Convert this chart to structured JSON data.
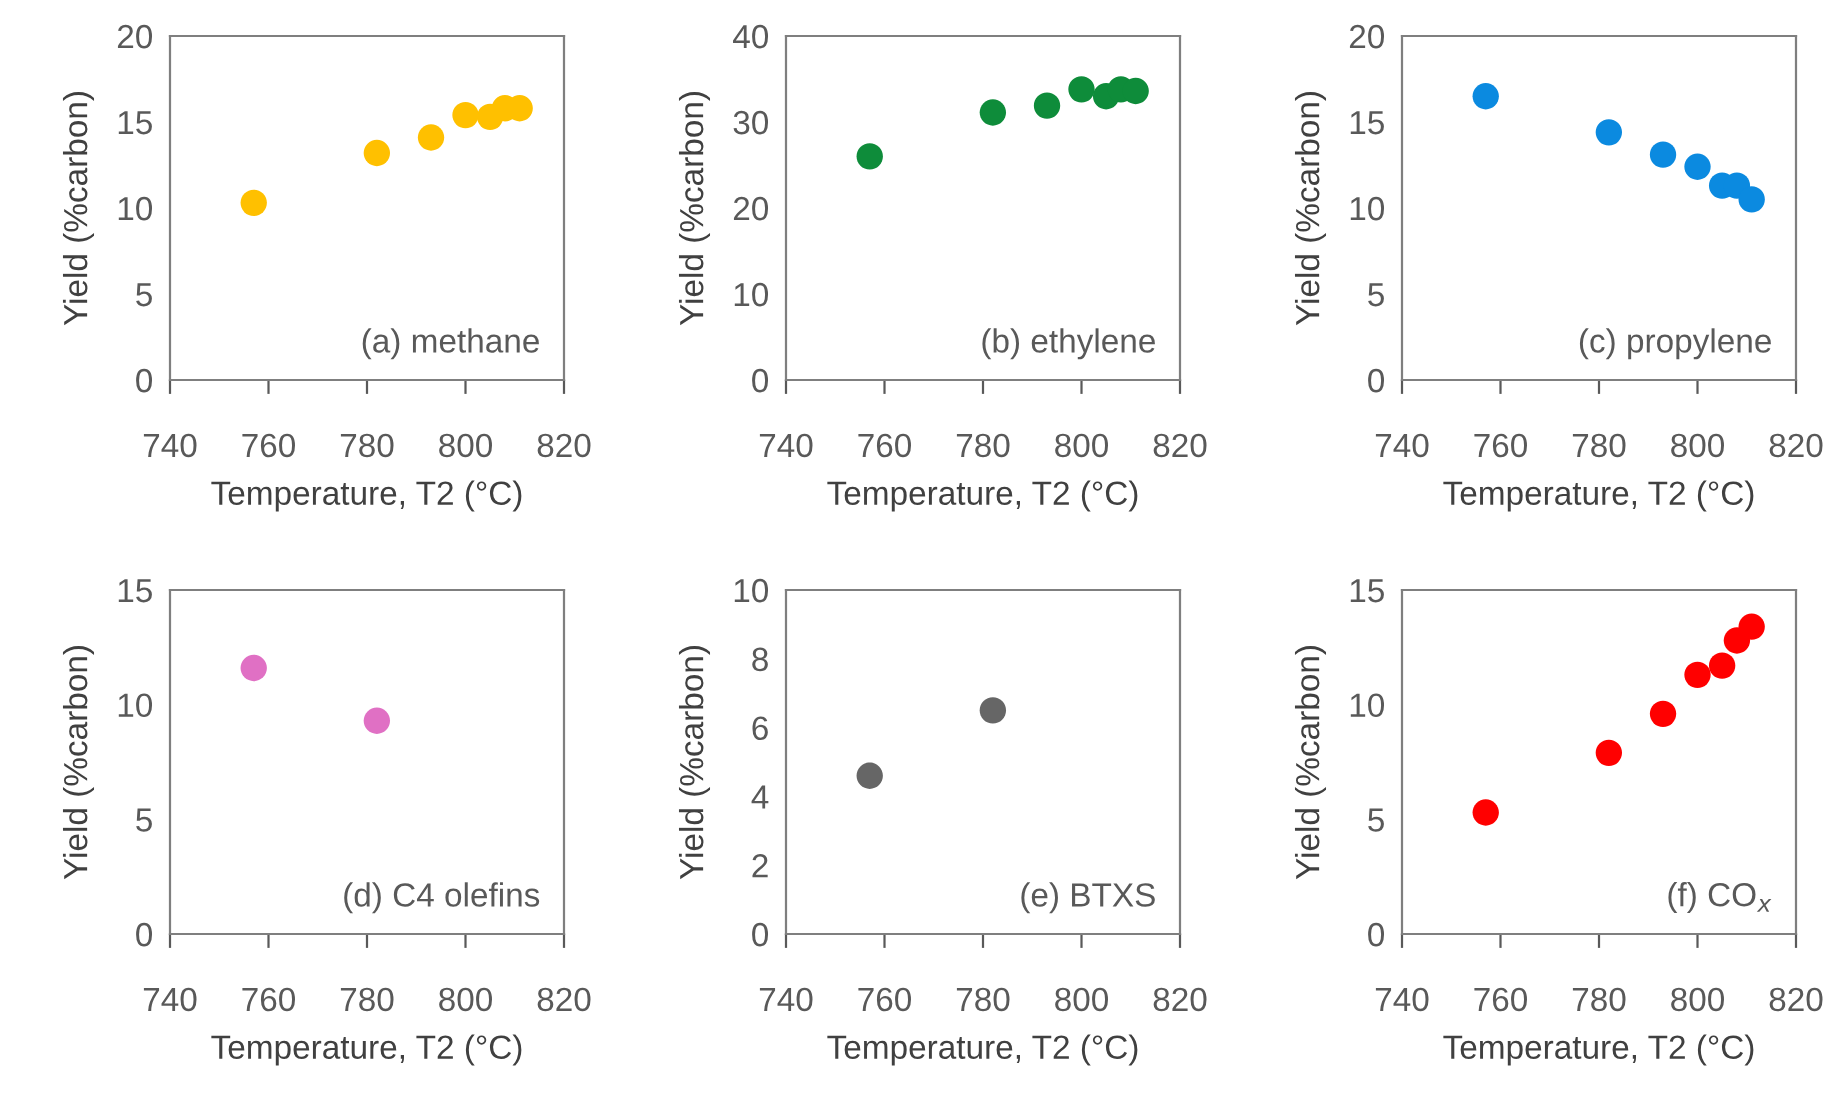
{
  "chart_data": [
    {
      "type": "scatter",
      "x": [
        757,
        782,
        793,
        800,
        805,
        808,
        811
      ],
      "series": [
        {
          "color": "#ffc000",
          "values": [
            10.3,
            13.2,
            14.1,
            15.4,
            15.3,
            15.8,
            15.8
          ]
        }
      ],
      "xlim": [
        740,
        820
      ],
      "xticks": [
        740,
        760,
        780,
        800,
        820
      ],
      "ylim": [
        0,
        20
      ],
      "yticks": [
        0,
        5,
        10,
        15,
        20
      ],
      "xlabel": "Temperature, T2 (°C)",
      "ylabel": "Yield (%carbon)",
      "annotations": [
        "(a) methane"
      ],
      "marker": "circle",
      "grid": false
    },
    {
      "type": "scatter",
      "x": [
        757,
        782,
        793,
        800,
        805,
        808,
        811
      ],
      "series": [
        {
          "color": "#0e8c3a",
          "values": [
            26.0,
            31.1,
            31.9,
            33.8,
            33.0,
            33.8,
            33.6
          ]
        }
      ],
      "xlim": [
        740,
        820
      ],
      "xticks": [
        740,
        760,
        780,
        800,
        820
      ],
      "ylim": [
        0,
        40
      ],
      "yticks": [
        0,
        10,
        20,
        30,
        40
      ],
      "xlabel": "Temperature, T2 (°C)",
      "ylabel": "Yield (%carbon)",
      "annotations": [
        "(b) ethylene"
      ],
      "marker": "circle",
      "grid": false
    },
    {
      "type": "scatter",
      "x": [
        757,
        782,
        793,
        800,
        805,
        808,
        811
      ],
      "series": [
        {
          "color": "#0b8ae0",
          "values": [
            16.5,
            14.4,
            13.1,
            12.4,
            11.3,
            11.3,
            10.5
          ]
        }
      ],
      "xlim": [
        740,
        820
      ],
      "xticks": [
        740,
        760,
        780,
        800,
        820
      ],
      "ylim": [
        0,
        20
      ],
      "yticks": [
        0,
        5,
        10,
        15,
        20
      ],
      "xlabel": "Temperature, T2 (°C)",
      "ylabel": "Yield (%carbon)",
      "annotations": [
        "(c) propylene"
      ],
      "marker": "circle",
      "grid": false
    },
    {
      "type": "scatter",
      "x": [
        757,
        782
      ],
      "series": [
        {
          "color": "#e070c4",
          "values": [
            11.6,
            9.3
          ]
        }
      ],
      "xlim": [
        740,
        820
      ],
      "xticks": [
        740,
        760,
        780,
        800,
        820
      ],
      "ylim": [
        0,
        15
      ],
      "yticks": [
        0,
        5,
        10,
        15
      ],
      "xlabel": "Temperature, T2 (°C)",
      "ylabel": "Yield (%carbon)",
      "annotations": [
        "(d) C4 olefins"
      ],
      "marker": "circle",
      "grid": false
    },
    {
      "type": "scatter",
      "x": [
        757,
        782
      ],
      "series": [
        {
          "color": "#666666",
          "values": [
            4.6,
            6.5
          ]
        }
      ],
      "xlim": [
        740,
        820
      ],
      "xticks": [
        740,
        760,
        780,
        800,
        820
      ],
      "ylim": [
        0,
        10
      ],
      "yticks": [
        0,
        2,
        4,
        6,
        8,
        10
      ],
      "xlabel": "Temperature, T2 (°C)",
      "ylabel": "Yield (%carbon)",
      "annotations": [
        "(e) BTXS"
      ],
      "marker": "circle",
      "grid": false
    },
    {
      "type": "scatter",
      "x": [
        757,
        782,
        793,
        800,
        805,
        808,
        811
      ],
      "series": [
        {
          "color": "#ff0000",
          "values": [
            5.3,
            7.9,
            9.6,
            11.3,
            11.7,
            12.8,
            13.4
          ]
        }
      ],
      "xlim": [
        740,
        820
      ],
      "xticks": [
        740,
        760,
        780,
        800,
        820
      ],
      "ylim": [
        0,
        15
      ],
      "yticks": [
        0,
        5,
        10,
        15
      ],
      "xlabel": "Temperature, T2 (°C)",
      "ylabel": "Yield (%carbon)",
      "annotations": [
        "(f) CO$_{x}$"
      ],
      "marker": "circle",
      "grid": false
    }
  ]
}
